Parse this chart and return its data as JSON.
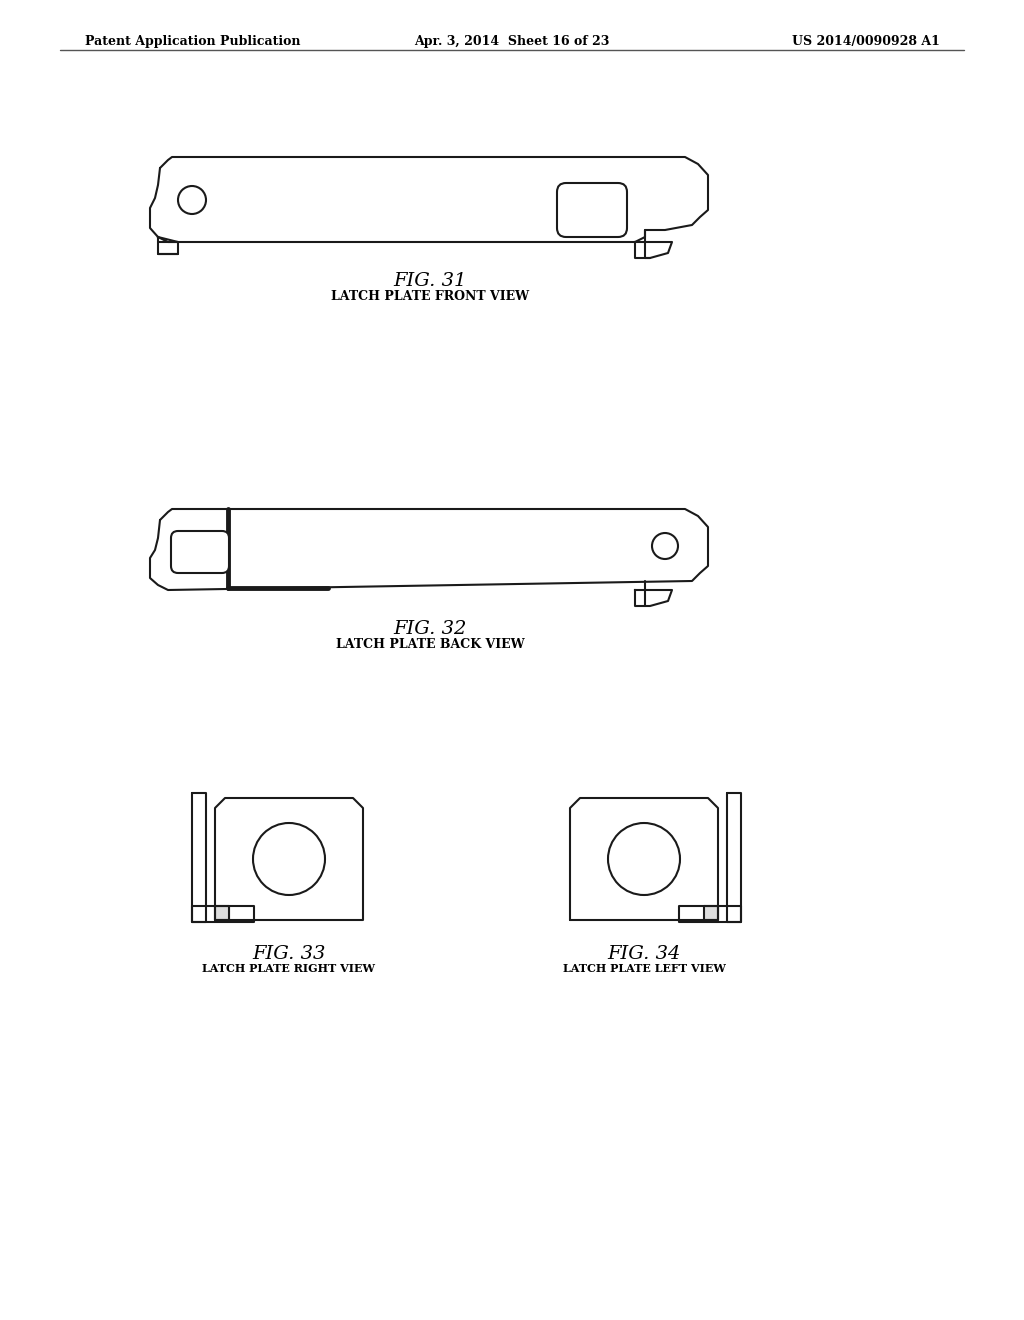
{
  "bg_color": "#ffffff",
  "text_color": "#000000",
  "line_color": "#1a1a1a",
  "header_left": "Patent Application Publication",
  "header_mid": "Apr. 3, 2014  Sheet 16 of 23",
  "header_right": "US 2014/0090928 A1",
  "fig31_label": "FIG. 31",
  "fig31_caption": "LATCH PLATE FRONT VIEW",
  "fig32_label": "FIG. 32",
  "fig32_caption": "LATCH PLATE BACK VIEW",
  "fig33_label": "FIG. 33",
  "fig33_caption": "LATCH PLATE RIGHT VIEW",
  "fig34_label": "FIG. 34",
  "fig34_caption": "LATCH PLATE LEFT VIEW"
}
